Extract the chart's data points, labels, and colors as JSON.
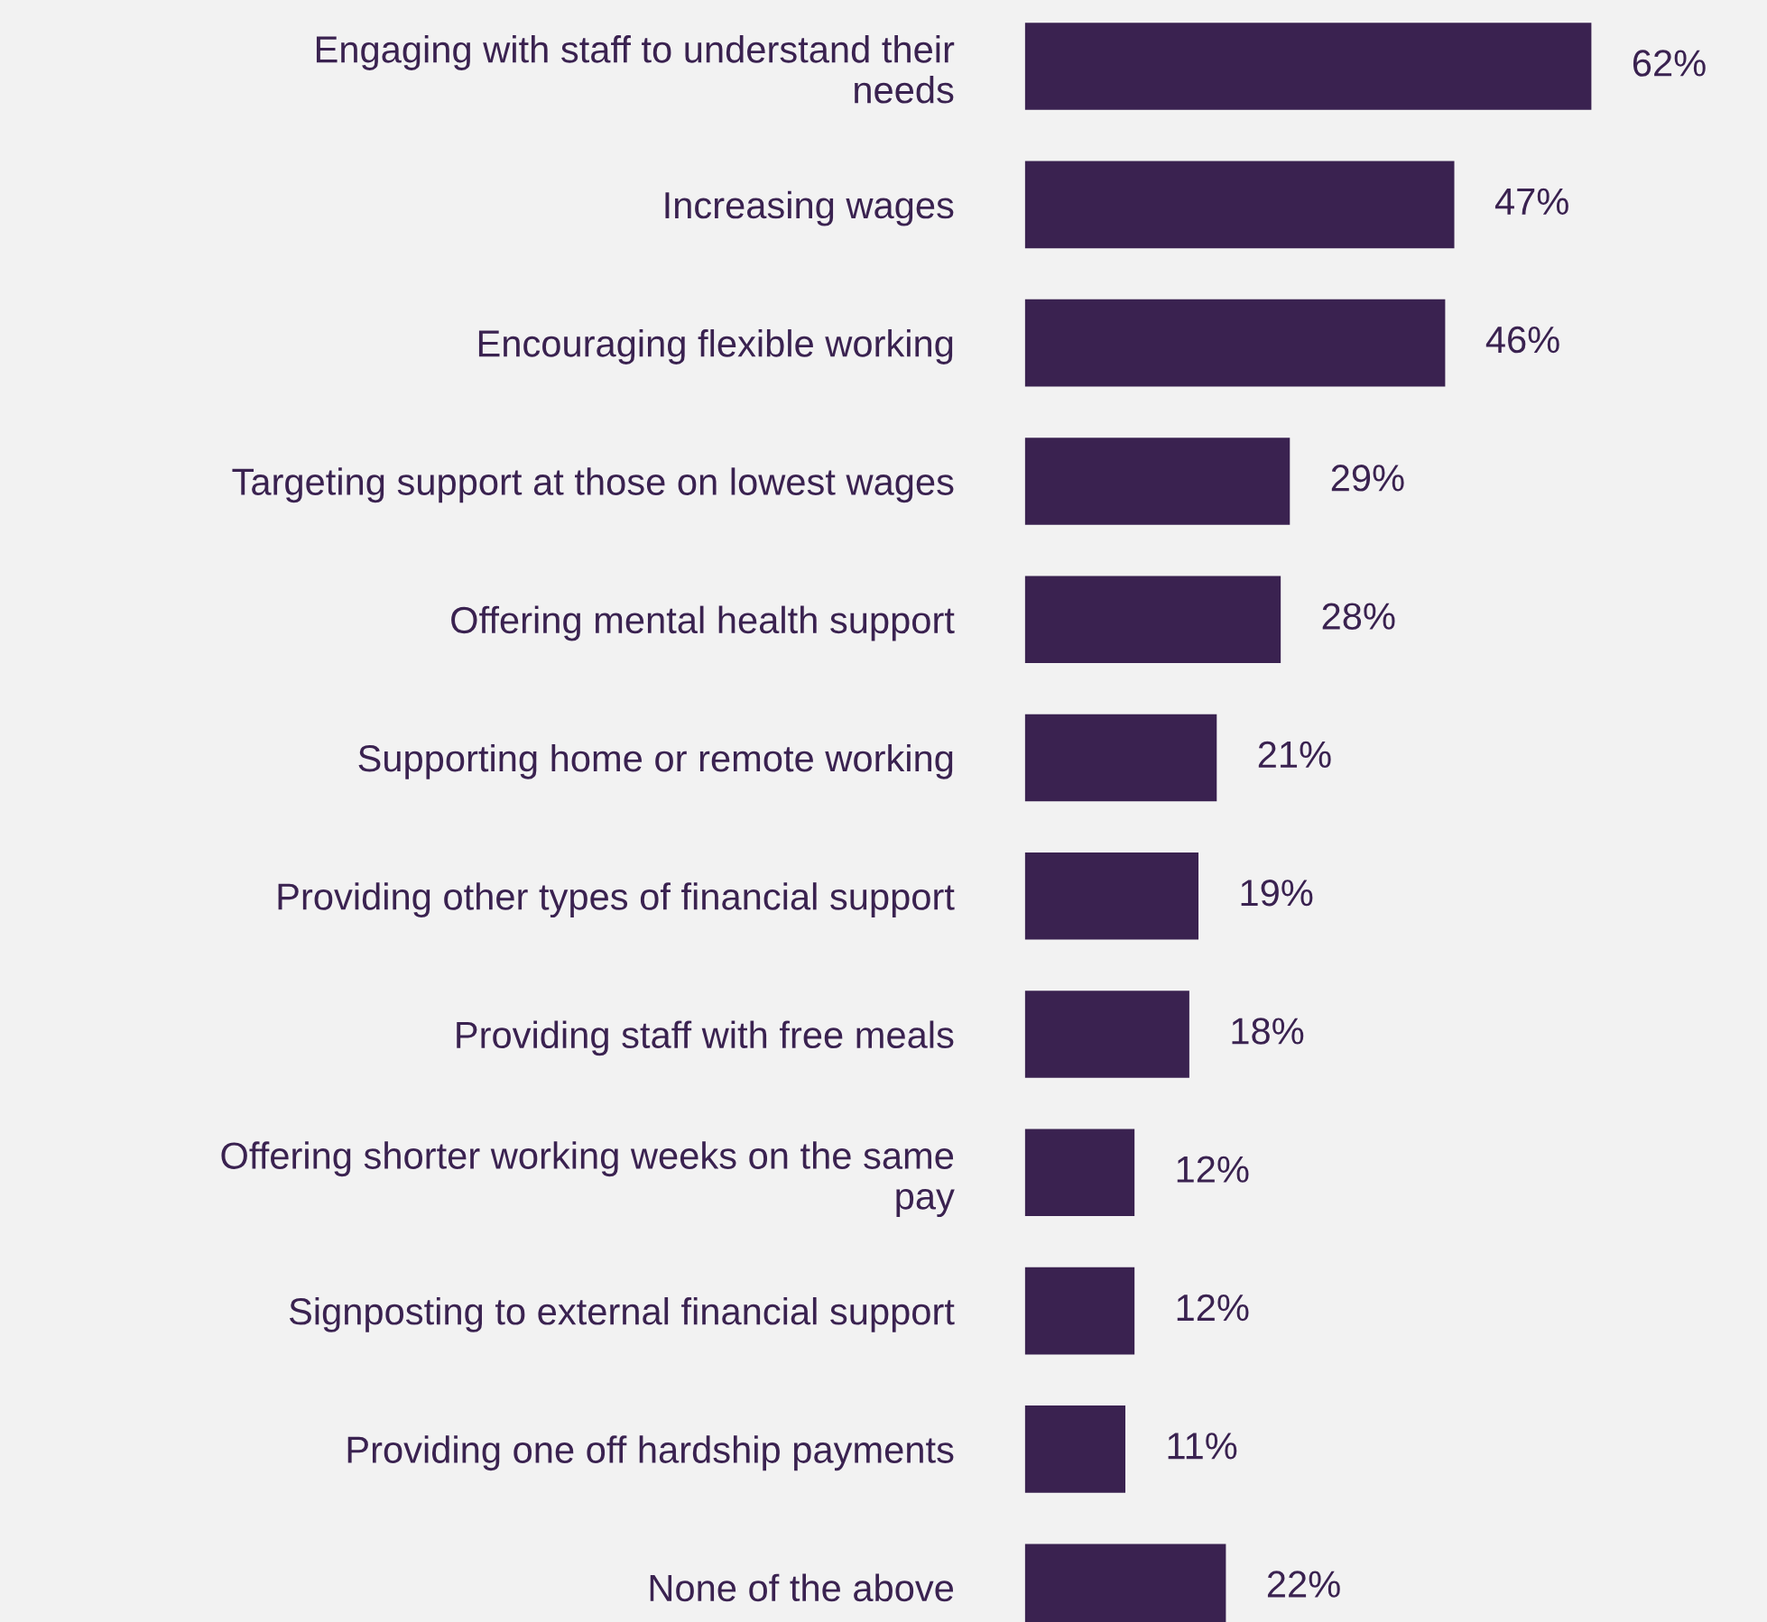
{
  "chart_data": {
    "type": "bar",
    "orientation": "horizontal",
    "categories": [
      "Engaging with staff to understand their needs",
      "Increasing wages",
      "Encouraging flexible working",
      "Targeting support at those on lowest wages",
      "Offering mental health support",
      "Supporting home or remote working",
      "Providing other types of financial support",
      "Providing staff with free meals",
      "Offering shorter working weeks on the same pay",
      "Signposting to external financial support",
      "Providing one off hardship payments",
      "None of the above"
    ],
    "values": [
      62,
      47,
      46,
      29,
      28,
      21,
      19,
      18,
      12,
      12,
      11,
      22
    ],
    "value_labels": [
      "62%",
      "47%",
      "46%",
      "29%",
      "28%",
      "21%",
      "19%",
      "18%",
      "12%",
      "12%",
      "11%",
      "22%"
    ],
    "color": "#3a2250",
    "grid": false,
    "legend": false
  }
}
